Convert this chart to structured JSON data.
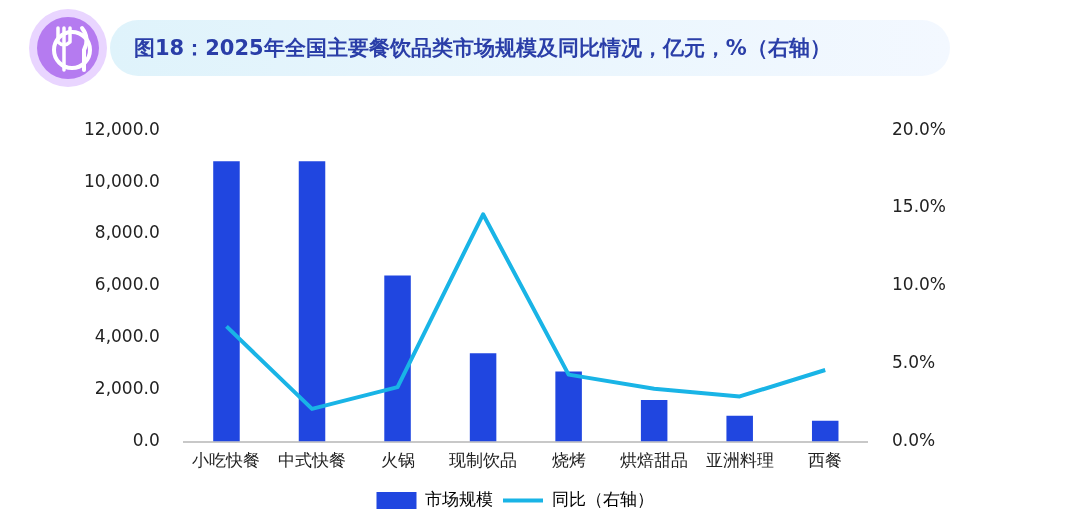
{
  "chart_data": {
    "type": "bar",
    "title": "图18：2025年全国主要餐饮品类市场规模及同比情况，亿元，%（右轴）",
    "categories": [
      "小吃快餐",
      "中式快餐",
      "火锅",
      "现制饮品",
      "烧烤",
      "烘焙甜品",
      "亚洲料理",
      "西餐"
    ],
    "series": [
      {
        "name": "市场规模",
        "color": "#2046e0",
        "values": [
          10800,
          10800,
          6400,
          3400,
          2700,
          1600,
          1000,
          800
        ]
      },
      {
        "name": "同比（右轴）",
        "type": "line",
        "axis": "y2",
        "color": "#19b4e6",
        "marker": "none",
        "values": [
          7.4,
          2.1,
          3.5,
          14.6,
          4.3,
          3.4,
          2.9,
          4.6
        ]
      }
    ],
    "ylim": [
      0,
      12000
    ],
    "yticks": [
      {
        "value": 0,
        "label": "0.0"
      },
      {
        "value": 2000,
        "label": "2,000.0"
      },
      {
        "value": 4000,
        "label": "4,000.0"
      },
      {
        "value": 6000,
        "label": "6,000.0"
      },
      {
        "value": 8000,
        "label": "8,000.0"
      },
      {
        "value": 10000,
        "label": "10,000.0"
      },
      {
        "value": 12000,
        "label": "12,000.0"
      }
    ],
    "y2lim": [
      0,
      20
    ],
    "y2ticks": [
      {
        "value": 0,
        "label": "0.0%"
      },
      {
        "value": 5,
        "label": "5.0%"
      },
      {
        "value": 10,
        "label": "10.0%"
      },
      {
        "value": 15,
        "label": "15.0%"
      },
      {
        "value": 20,
        "label": "20.0%"
      }
    ],
    "grid": false,
    "legend": "bottom"
  }
}
